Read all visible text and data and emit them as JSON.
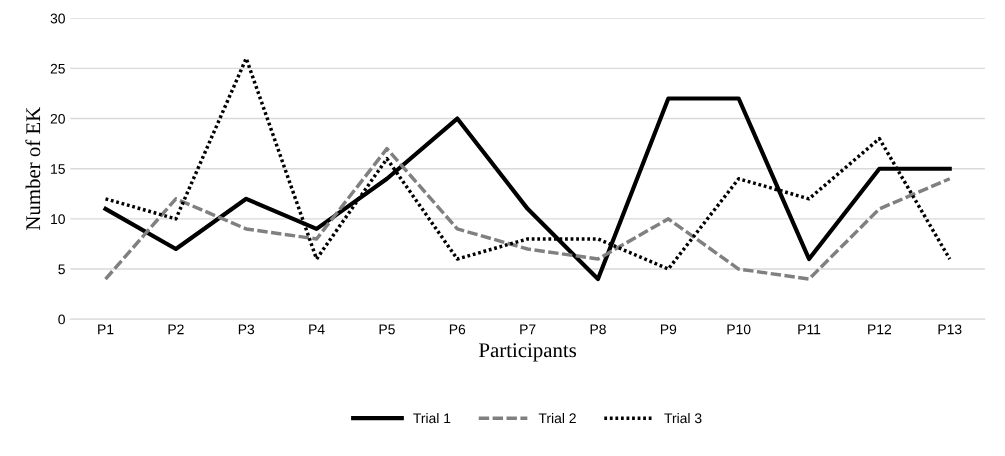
{
  "chart_data": {
    "type": "line",
    "xlabel": "Participants",
    "ylabel": "Number of EK",
    "categories": [
      "P1",
      "P2",
      "P3",
      "P4",
      "P5",
      "P6",
      "P7",
      "P8",
      "P9",
      "P10",
      "P11",
      "P12",
      "P13"
    ],
    "series": [
      {
        "name": "Trial 1",
        "color": "#000000",
        "line_style": "solid",
        "values": [
          11,
          7,
          12,
          9,
          14,
          20,
          11,
          4,
          22,
          22,
          6,
          15,
          15
        ]
      },
      {
        "name": "Trial 2",
        "color": "#808080",
        "line_style": "dashed",
        "values": [
          4,
          12,
          9,
          8,
          17,
          9,
          7,
          6,
          10,
          5,
          4,
          11,
          14
        ]
      },
      {
        "name": "Trial 3",
        "color": "#000000",
        "line_style": "dotted",
        "values": [
          12,
          10,
          26,
          6,
          16,
          6,
          8,
          8,
          5,
          14,
          12,
          18,
          6
        ]
      }
    ],
    "ylim": [
      0,
      30
    ],
    "yticks": [
      0,
      5,
      10,
      15,
      20,
      25,
      30
    ],
    "grid": "y",
    "legend": "bottom",
    "marker": "none"
  }
}
